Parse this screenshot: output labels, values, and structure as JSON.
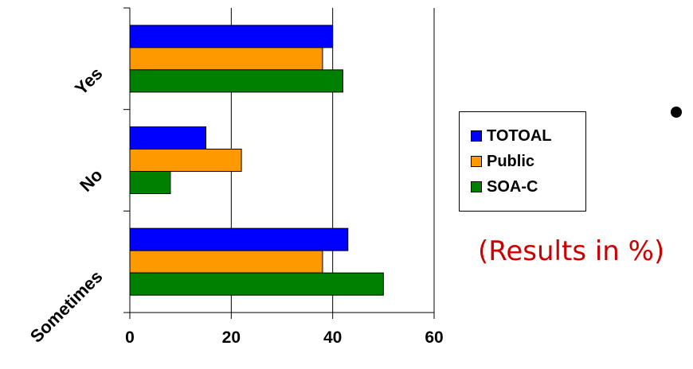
{
  "chart_data": {
    "type": "bar",
    "orientation": "horizontal",
    "categories": [
      "Yes",
      "No",
      "Sometimes"
    ],
    "series": [
      {
        "name": "TOTOAL",
        "color": "#0000ff",
        "values": [
          40,
          15,
          43
        ]
      },
      {
        "name": "Public",
        "color": "#ff9900",
        "values": [
          38,
          22,
          38
        ]
      },
      {
        "name": "SOA-C",
        "color": "#008000",
        "values": [
          42,
          8,
          50
        ]
      }
    ],
    "xlim": [
      0,
      60
    ],
    "xticks": [
      0,
      20,
      40,
      60
    ],
    "grid": true,
    "legend_position": "right",
    "title": "",
    "xlabel": "",
    "ylabel": ""
  },
  "annotation": "(Results in %)"
}
